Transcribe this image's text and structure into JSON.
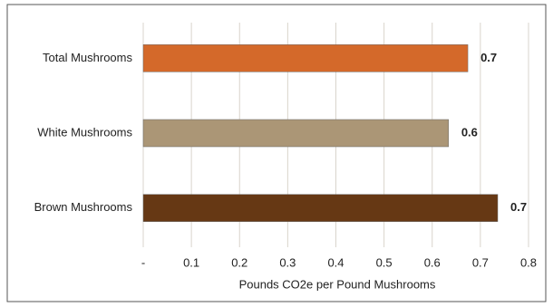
{
  "chart_data": {
    "type": "bar",
    "orientation": "horizontal",
    "categories": [
      "Total Mushrooms",
      "White Mushrooms",
      "Brown Mushrooms"
    ],
    "values": [
      0.674,
      0.634,
      0.736
    ],
    "value_labels": [
      "0.7",
      "0.6",
      "0.7"
    ],
    "colors": [
      "#d4692a",
      "#ab9676",
      "#663814"
    ],
    "x_label": "Pounds CO2e per Pound Mushrooms",
    "xlim": [
      0,
      0.8
    ],
    "xticks": [
      {
        "value": 0,
        "label": "-"
      },
      0.1,
      0.2,
      0.3,
      0.4,
      0.5,
      0.6,
      0.7,
      0.8
    ],
    "grid": true
  }
}
